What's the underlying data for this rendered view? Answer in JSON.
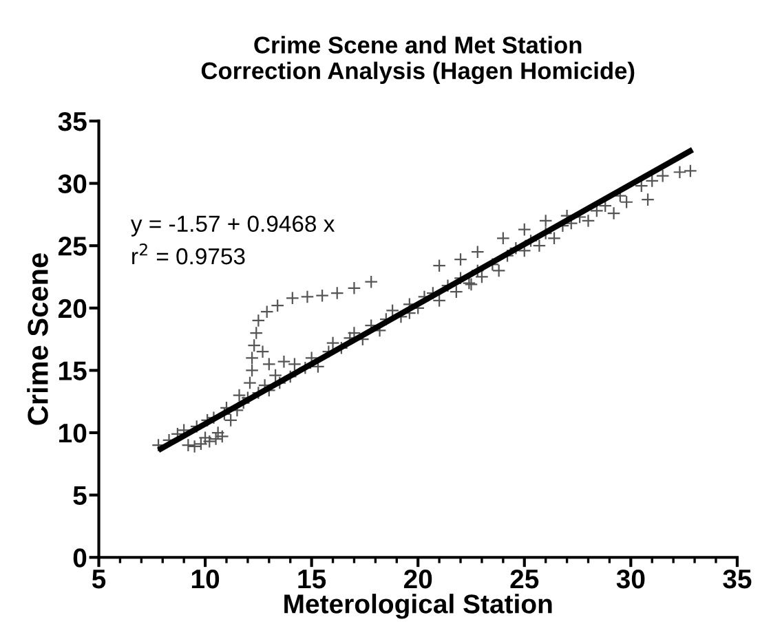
{
  "chart_data": {
    "type": "scatter",
    "title": "Crime Scene and Met Station\nCorrection Analysis (Hagen Homicide)",
    "xlabel": "Meterological Station",
    "ylabel": "Crime Scene",
    "annotations": [
      "y = -1.57 + 0.9468 x",
      "r$^{2}$ = 0.9753"
    ],
    "xlim": [
      5,
      35
    ],
    "ylim": [
      0,
      35
    ],
    "xticks": [
      5,
      10,
      15,
      20,
      25,
      30,
      35
    ],
    "yticks": [
      0,
      5,
      10,
      15,
      20,
      25,
      30,
      35
    ],
    "grid": false,
    "legend": false,
    "series": [
      {
        "marker": "cross",
        "color": "#555555",
        "x": [
          7.8,
          8.3,
          8.7,
          9.0,
          9.2,
          9.5,
          9.8,
          10.0,
          10.2,
          10.5,
          10.6,
          10.8,
          9.6,
          10.1,
          10.4,
          10.9,
          11.2,
          11.5,
          11.0,
          11.8,
          12.0,
          11.6,
          12.1,
          12.2,
          12.2,
          12.3,
          12.4,
          12.5,
          12.9,
          13.4,
          14.1,
          14.8,
          15.5,
          16.2,
          17.0,
          17.8,
          12.7,
          13.0,
          13.3,
          12.8,
          12.5,
          13.0,
          13.5,
          14.0,
          14.2,
          14.7,
          15.0,
          15.3,
          15.8,
          16.0,
          16.4,
          16.8,
          17.0,
          17.4,
          17.8,
          18.2,
          18.5,
          18.8,
          19.2,
          19.6,
          20.0,
          20.3,
          20.7,
          21.0,
          21.4,
          21.8,
          22.0,
          22.4,
          22.8,
          23.0,
          23.5,
          23.8,
          24.2,
          24.6,
          25.0,
          25.3,
          25.7,
          26.0,
          26.4,
          26.8,
          27.2,
          27.6,
          28.0,
          28.4,
          28.8,
          29.2,
          29.5,
          29.8,
          30.8,
          30.5,
          31.0,
          32.3,
          32.8,
          31.5,
          21.0,
          22.0,
          22.8,
          24.0,
          25.0,
          26.0,
          27.0,
          13.7,
          22.5,
          19.6
        ],
        "values": [
          9.0,
          9.4,
          9.9,
          10.2,
          9.0,
          8.9,
          9.1,
          9.6,
          9.3,
          9.5,
          10.0,
          9.7,
          10.5,
          11.0,
          11.2,
          11.5,
          11.0,
          11.8,
          12.0,
          12.4,
          12.8,
          13.0,
          14.0,
          15.0,
          16.0,
          17.0,
          18.0,
          19.0,
          19.7,
          20.2,
          20.8,
          20.9,
          21.0,
          21.2,
          21.6,
          22.1,
          16.5,
          15.5,
          14.6,
          13.8,
          13.2,
          13.4,
          14.0,
          14.5,
          15.5,
          15.2,
          16.0,
          15.3,
          16.5,
          17.2,
          16.8,
          17.6,
          18.0,
          17.5,
          18.6,
          18.2,
          19.1,
          19.8,
          19.3,
          20.3,
          20.0,
          20.9,
          21.2,
          20.6,
          21.8,
          21.3,
          22.4,
          22.0,
          23.0,
          22.5,
          23.5,
          23.0,
          24.2,
          24.8,
          24.6,
          25.4,
          25.0,
          26.0,
          25.6,
          26.6,
          26.8,
          27.3,
          27.0,
          27.8,
          28.2,
          27.6,
          29.0,
          28.5,
          28.7,
          29.8,
          30.2,
          30.9,
          31.0,
          30.6,
          23.4,
          23.9,
          24.5,
          25.6,
          26.3,
          27.0,
          27.4,
          15.7,
          21.9,
          19.6
        ]
      },
      {
        "type": "line",
        "marker": "none",
        "color": "#000000",
        "x": [
          7.8,
          32.9
        ],
        "values": [
          8.6,
          32.7
        ]
      }
    ]
  }
}
